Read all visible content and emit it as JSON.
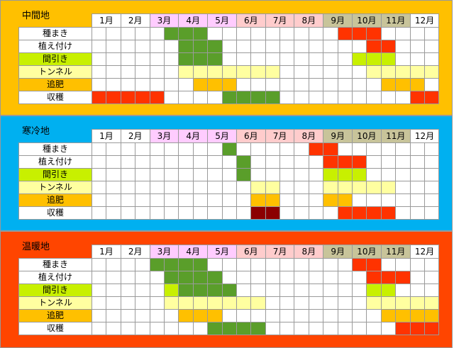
{
  "months": [
    "1月",
    "2月",
    "3月",
    "4月",
    "5月",
    "6月",
    "7月",
    "8月",
    "9月",
    "10月",
    "11月",
    "12月"
  ],
  "month_colors": [
    "#ffffff",
    "#ffffff",
    "#ffccff",
    "#ffccff",
    "#ffccff",
    "#ffcccc",
    "#ffcccc",
    "#ffcccc",
    "#c8c49a",
    "#c8c49a",
    "#c8c49a",
    "#ffffff"
  ],
  "colors": {
    "W": "#ffffff",
    "R": "#ff3300",
    "G": "#5a9e2a",
    "Y": "#ffffa0",
    "O": "#ffc000",
    "M": "#8b0000",
    "LG": "#c8f000"
  },
  "sections": [
    {
      "name": "中間地",
      "bg": "#ffc000",
      "rows": [
        {
          "label": "種まき",
          "label_bg": "#ffffff",
          "cells": "WWWWWGGGWWWWWWWWWRRRWWWWW"
        },
        {
          "label": "植え付け",
          "label_bg": "#ffffff",
          "cells": "WWWWWWGGGWWWWWWWWWWRRWWWWW"
        },
        {
          "label": "間引き",
          "label_bg": "#c8f000",
          "cells": "WWWWWWGGGWWWWWWWWWLGLGLGWWWWWW"
        },
        {
          "label": "トンネル",
          "label_bg": "#ffffa0",
          "cells": "WWWWWWYYYYYYYWWWWWWYYYYYYYYY"
        },
        {
          "label": "追肥",
          "label_bg": "#ffc000",
          "cells": "WWWWWWWOOOWWWWWWWWWWOOOWWWW"
        },
        {
          "label": "収穫",
          "label_bg": "#ffffff",
          "cells": "RRRRRWWWWGGGGWWWWWWWWWRRRR"
        }
      ]
    },
    {
      "name": "寒冷地",
      "bg": "#00b0f0",
      "rows": [
        {
          "label": "種まき",
          "label_bg": "#ffffff",
          "cells": "WWWWWWWWWGWWWWWRRWWWWWWWWW"
        },
        {
          "label": "植え付け",
          "label_bg": "#ffffff",
          "cells": "WWWWWWWWWWGWWWWWRRRWWWWWWW"
        },
        {
          "label": "間引き",
          "label_bg": "#c8f000",
          "cells": "WWWWWWWWWWGWWWWWLGLGLGWWWWWW"
        },
        {
          "label": "トンネル",
          "label_bg": "#ffffa0",
          "cells": "WWWWWWWWWWWYYWWWYYYYYWWWW"
        },
        {
          "label": "追肥",
          "label_bg": "#ffc000",
          "cells": "WWWWWWWWWWWOOWWWOOWWWWWWW"
        },
        {
          "label": "収穫",
          "label_bg": "#ffffff",
          "cells": "WWWWWWWWWWWMMWWWWRRRRWWWW"
        }
      ]
    },
    {
      "name": "温暖地",
      "bg": "#ff4500",
      "rows": [
        {
          "label": "種まき",
          "label_bg": "#ffffff",
          "cells": "WWWWGGGGWWWWWWWWWWRRWWWWWW"
        },
        {
          "label": "植え付け",
          "label_bg": "#ffffff",
          "cells": "WWWWWGGGGWWWWWWWWWWRRRWWWW"
        },
        {
          "label": "間引き",
          "label_bg": "#c8f000",
          "cells": "WWWWWLGGGGGWWWWWWWWWLGLGWWWWW"
        },
        {
          "label": "トンネル",
          "label_bg": "#ffffa0",
          "cells": "WWWWWYYYYYYYWWWWWWWYYYYYYYW"
        },
        {
          "label": "追肥",
          "label_bg": "#ffc000",
          "cells": "WWWWWWOOOWWWWWWWWWWWOOOOWWW"
        },
        {
          "label": "収穫",
          "label_bg": "#ffffff",
          "cells": "WWWWWWWWGGGGWWWWWWWWWRRRRR"
        }
      ]
    }
  ]
}
